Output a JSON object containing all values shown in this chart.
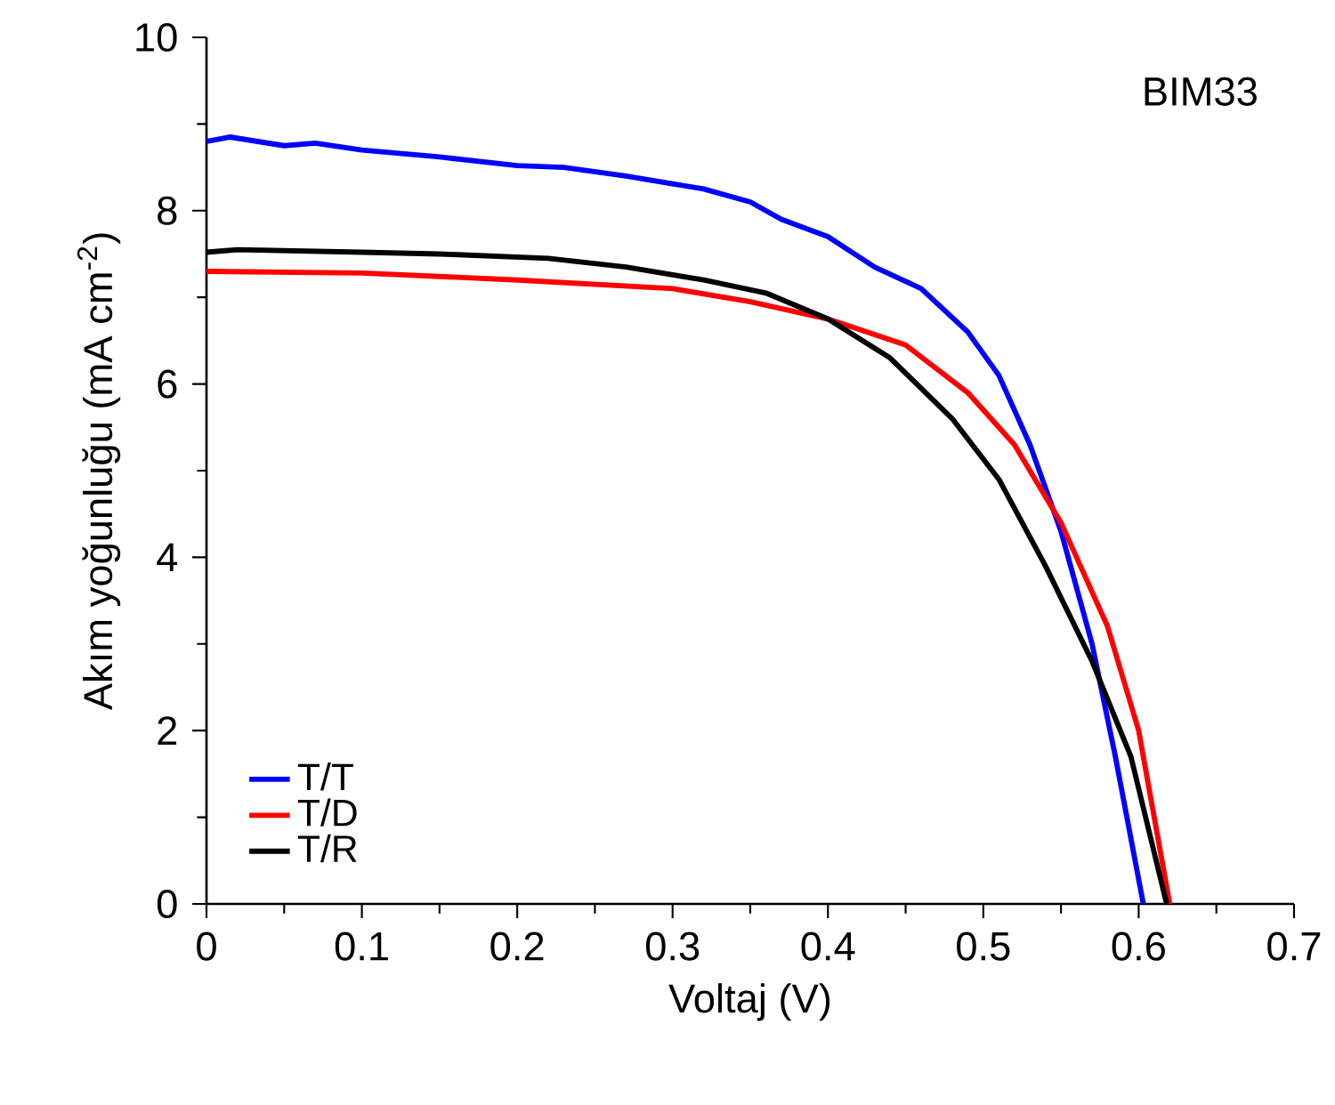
{
  "chart_data": {
    "type": "line",
    "xlabel": "Voltaj (V)",
    "ylabel": "Akım yoğunluğu (mA cm$^{-2}$)",
    "annotations": [
      "BIM33"
    ],
    "xlim": [
      0,
      0.7
    ],
    "ylim": [
      0,
      10
    ],
    "xticks": [
      0,
      0.1,
      0.2,
      0.3,
      0.4,
      0.5,
      0.6,
      0.7
    ],
    "yticks": [
      0,
      2,
      4,
      6,
      8,
      10
    ],
    "grid": false,
    "legend": "bottom left",
    "marker": "none",
    "line_style": "solid",
    "series": [
      {
        "name": "T/T",
        "color": "#0000ff",
        "x": [
          0,
          0.015,
          0.05,
          0.07,
          0.1,
          0.15,
          0.2,
          0.23,
          0.27,
          0.32,
          0.35,
          0.37,
          0.4,
          0.43,
          0.46,
          0.49,
          0.51,
          0.53,
          0.55,
          0.57,
          0.585,
          0.603
        ],
        "values": [
          8.8,
          8.85,
          8.75,
          8.78,
          8.7,
          8.62,
          8.52,
          8.5,
          8.4,
          8.25,
          8.1,
          7.9,
          7.7,
          7.35,
          7.1,
          6.6,
          6.1,
          5.3,
          4.3,
          3.0,
          1.7,
          0
        ]
      },
      {
        "name": "T/D",
        "color": "#ff0000",
        "x": [
          0,
          0.1,
          0.2,
          0.3,
          0.35,
          0.4,
          0.45,
          0.49,
          0.52,
          0.55,
          0.58,
          0.6,
          0.62
        ],
        "values": [
          7.3,
          7.28,
          7.2,
          7.1,
          6.95,
          6.75,
          6.45,
          5.9,
          5.3,
          4.4,
          3.2,
          2.0,
          0
        ]
      },
      {
        "name": "T/R",
        "color": "#000000",
        "x": [
          0,
          0.02,
          0.1,
          0.15,
          0.22,
          0.27,
          0.32,
          0.36,
          0.4,
          0.44,
          0.48,
          0.51,
          0.54,
          0.57,
          0.595,
          0.618
        ],
        "values": [
          7.52,
          7.55,
          7.52,
          7.5,
          7.45,
          7.35,
          7.2,
          7.05,
          6.75,
          6.3,
          5.6,
          4.9,
          3.9,
          2.8,
          1.7,
          0
        ]
      }
    ]
  }
}
